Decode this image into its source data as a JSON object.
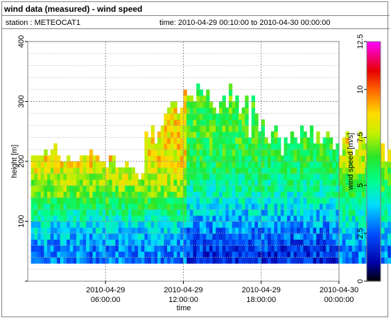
{
  "header": {
    "title": "wind data (measured) - wind speed",
    "station": "station : METEOCAT1",
    "time_range": "time: 2010-04-29 00:10:00 to 2010-04-30 00:00:00"
  },
  "chart_data": {
    "type": "heatmap",
    "title": "wind data (measured) - wind speed",
    "xlabel": "time",
    "ylabel": "height [m]",
    "colorbar_label": "wind speed [m/s]",
    "x_range": [
      "2010-04-29 00:00:00",
      "2010-04-30 00:00:00"
    ],
    "x_ticks": [
      {
        "value": "2010-04-29 06:00:00",
        "date": "2010-04-29",
        "time": "06:00:00"
      },
      {
        "value": "2010-04-29 12:00:00",
        "date": "2010-04-29",
        "time": "12:00:00"
      },
      {
        "value": "2010-04-29 18:00:00",
        "date": "2010-04-29",
        "time": "18:00:00"
      },
      {
        "value": "2010-04-30 00:00:00",
        "date": "2010-04-30",
        "time": "00:00:00"
      }
    ],
    "ylim": [
      0,
      400
    ],
    "y_ticks": [
      "100",
      "200",
      "300",
      "400"
    ],
    "y_tick_values": [
      100,
      200,
      300,
      400
    ],
    "colorbar_range": [
      0,
      12.5
    ],
    "colorbar_ticks": [
      "0",
      "2.5",
      "5",
      "7.5",
      "10",
      "12.5"
    ],
    "colorbar_tick_values": [
      0,
      2.5,
      5,
      7.5,
      10,
      12.5
    ],
    "height_levels_m": [
      35,
      45,
      55,
      65,
      75,
      85,
      95,
      105,
      115,
      125,
      135,
      145,
      155,
      165,
      175,
      185,
      195,
      205,
      215,
      225,
      235,
      245,
      255,
      265,
      275,
      285,
      295,
      305,
      315,
      325
    ],
    "time_step_minutes": 15,
    "grid": true,
    "column_tops_m": [
      205,
      205,
      205,
      205,
      215,
      205,
      215,
      225,
      205,
      195,
      195,
      205,
      195,
      195,
      195,
      205,
      205,
      205,
      215,
      205,
      205,
      195,
      195,
      185,
      205,
      205,
      185,
      185,
      185,
      195,
      185,
      185,
      175,
      165,
      175,
      245,
      235,
      255,
      225,
      245,
      255,
      275,
      285,
      295,
      295,
      275,
      285,
      315,
      305,
      305,
      295,
      325,
      315,
      305,
      315,
      295,
      285,
      275,
      295,
      305,
      285,
      325,
      295,
      305,
      275,
      285,
      305,
      235,
      305,
      275,
      245,
      265,
      235,
      225,
      245,
      255,
      235,
      205,
      235,
      225,
      245,
      235,
      225,
      255,
      245,
      235,
      255,
      225,
      245,
      225,
      235,
      245,
      235,
      215,
      225,
      205,
      235,
      245,
      215,
      205,
      215,
      245,
      235,
      225,
      255,
      235,
      245,
      225,
      225,
      195,
      215,
      235,
      265,
      275,
      255,
      265,
      245,
      235,
      215,
      255,
      255,
      245,
      235,
      235,
      215,
      225,
      235,
      215,
      245,
      215,
      225,
      235,
      225,
      225,
      205,
      245,
      235,
      255,
      235,
      205,
      215,
      205,
      225,
      225,
      245,
      235,
      225,
      225,
      195,
      235,
      215,
      205,
      225,
      215,
      225,
      205,
      225,
      245,
      235,
      215,
      205,
      225,
      185,
      235,
      225,
      215,
      205,
      215,
      225,
      215,
      235,
      225,
      205,
      215,
      195,
      225,
      235,
      225,
      215,
      205,
      215,
      195,
      215,
      225,
      205,
      215,
      235,
      225,
      215,
      205
    ],
    "approx_speed_m_s": {
      "heights_m": [
        50,
        100,
        150,
        200,
        250,
        300
      ],
      "hour_00_06": [
        3.0,
        4.5,
        7.0,
        8.5,
        null,
        null
      ],
      "hour_06_12": [
        2.0,
        3.5,
        5.0,
        6.0,
        6.5,
        6.5
      ],
      "hour_12_18": [
        3.0,
        4.5,
        6.0,
        7.5,
        8.5,
        null
      ],
      "hour_18_24": [
        3.5,
        4.5,
        6.5,
        8.0,
        9.5,
        null
      ]
    }
  }
}
